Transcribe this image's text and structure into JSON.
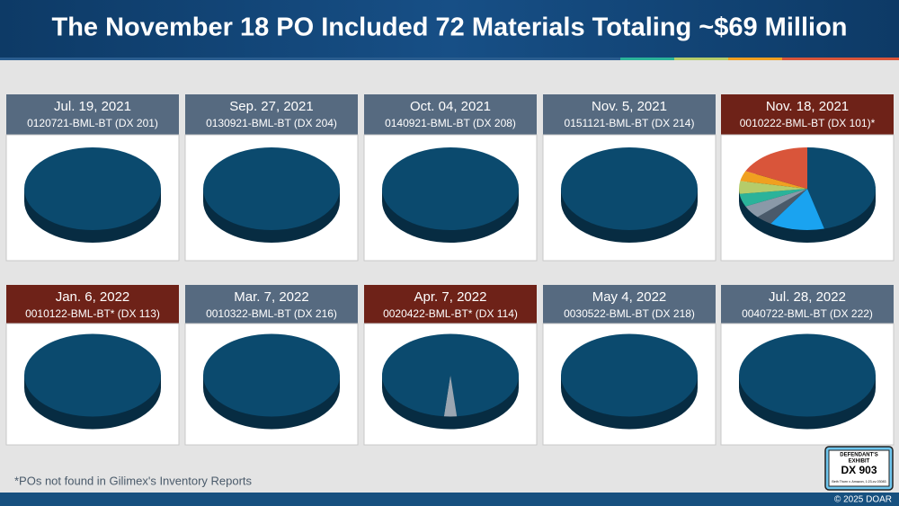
{
  "header": {
    "title": "The November 18 PO Included 72 Materials Totaling ~$69 Million"
  },
  "panels": [
    {
      "date": "Jul. 19, 2021",
      "po": "0120721-BML-BT (DX 201)",
      "highlight": false,
      "type": "pie",
      "slices": [
        {
          "color": "#0b4a6e",
          "value": 100
        }
      ]
    },
    {
      "date": "Sep. 27, 2021",
      "po": "0130921-BML-BT (DX 204)",
      "highlight": false,
      "type": "pie",
      "slices": [
        {
          "color": "#0b4a6e",
          "value": 100
        }
      ]
    },
    {
      "date": "Oct. 04, 2021",
      "po": "0140921-BML-BT (DX 208)",
      "highlight": false,
      "type": "pie",
      "slices": [
        {
          "color": "#0b4a6e",
          "value": 100
        }
      ]
    },
    {
      "date": "Nov. 5, 2021",
      "po": "0151121-BML-BT (DX 214)",
      "highlight": false,
      "type": "pie",
      "slices": [
        {
          "color": "#0b4a6e",
          "value": 100
        }
      ]
    },
    {
      "date": "Nov. 18, 2021",
      "po": "0010222-BML-BT (DX 101)*",
      "highlight": true,
      "type": "pie",
      "slices": [
        {
          "color": "#0b4a6e",
          "value": 46
        },
        {
          "color": "#1aa3f0",
          "value": 13
        },
        {
          "color": "#4a5a6a",
          "value": 4
        },
        {
          "color": "#8a99a8",
          "value": 5
        },
        {
          "color": "#2bb39a",
          "value": 5
        },
        {
          "color": "#b5cc6a",
          "value": 5
        },
        {
          "color": "#f0a020",
          "value": 4
        },
        {
          "color": "#d9553a",
          "value": 18
        }
      ]
    },
    {
      "date": "Jan. 6, 2022",
      "po": "0010122-BML-BT* (DX 113)",
      "highlight": true,
      "type": "pie",
      "slices": [
        {
          "color": "#0b4a6e",
          "value": 100
        }
      ]
    },
    {
      "date": "Mar. 7, 2022",
      "po": "0010322-BML-BT (DX 216)",
      "highlight": false,
      "type": "pie",
      "slices": [
        {
          "color": "#0b4a6e",
          "value": 100
        }
      ]
    },
    {
      "date": "Apr. 7, 2022",
      "po": "0020422-BML-BT* (DX 114)",
      "highlight": true,
      "type": "pie",
      "slices": [
        {
          "color": "#0b4a6e",
          "value": 48.5
        },
        {
          "color": "#9aa6b2",
          "value": 3
        },
        {
          "color": "#0b4a6e",
          "value": 48.5
        }
      ]
    },
    {
      "date": "May 4, 2022",
      "po": "0030522-BML-BT (DX 218)",
      "highlight": false,
      "type": "pie",
      "slices": [
        {
          "color": "#0b4a6e",
          "value": 100
        }
      ]
    },
    {
      "date": "Jul. 28, 2022",
      "po": "0040722-BML-BT (DX 222)",
      "highlight": false,
      "type": "pie",
      "slices": [
        {
          "color": "#0b4a6e",
          "value": 100
        }
      ]
    }
  ],
  "footnote": "*POs not found in Gilimex's Inventory Reports",
  "exhibit": {
    "label": "DEFENDANT'S",
    "sub": "EXHIBIT",
    "number": "DX 903",
    "case": "Beth Thorn v. Amazon, 1:23-cv-03083"
  },
  "copyright": "© 2025 DOAR"
}
